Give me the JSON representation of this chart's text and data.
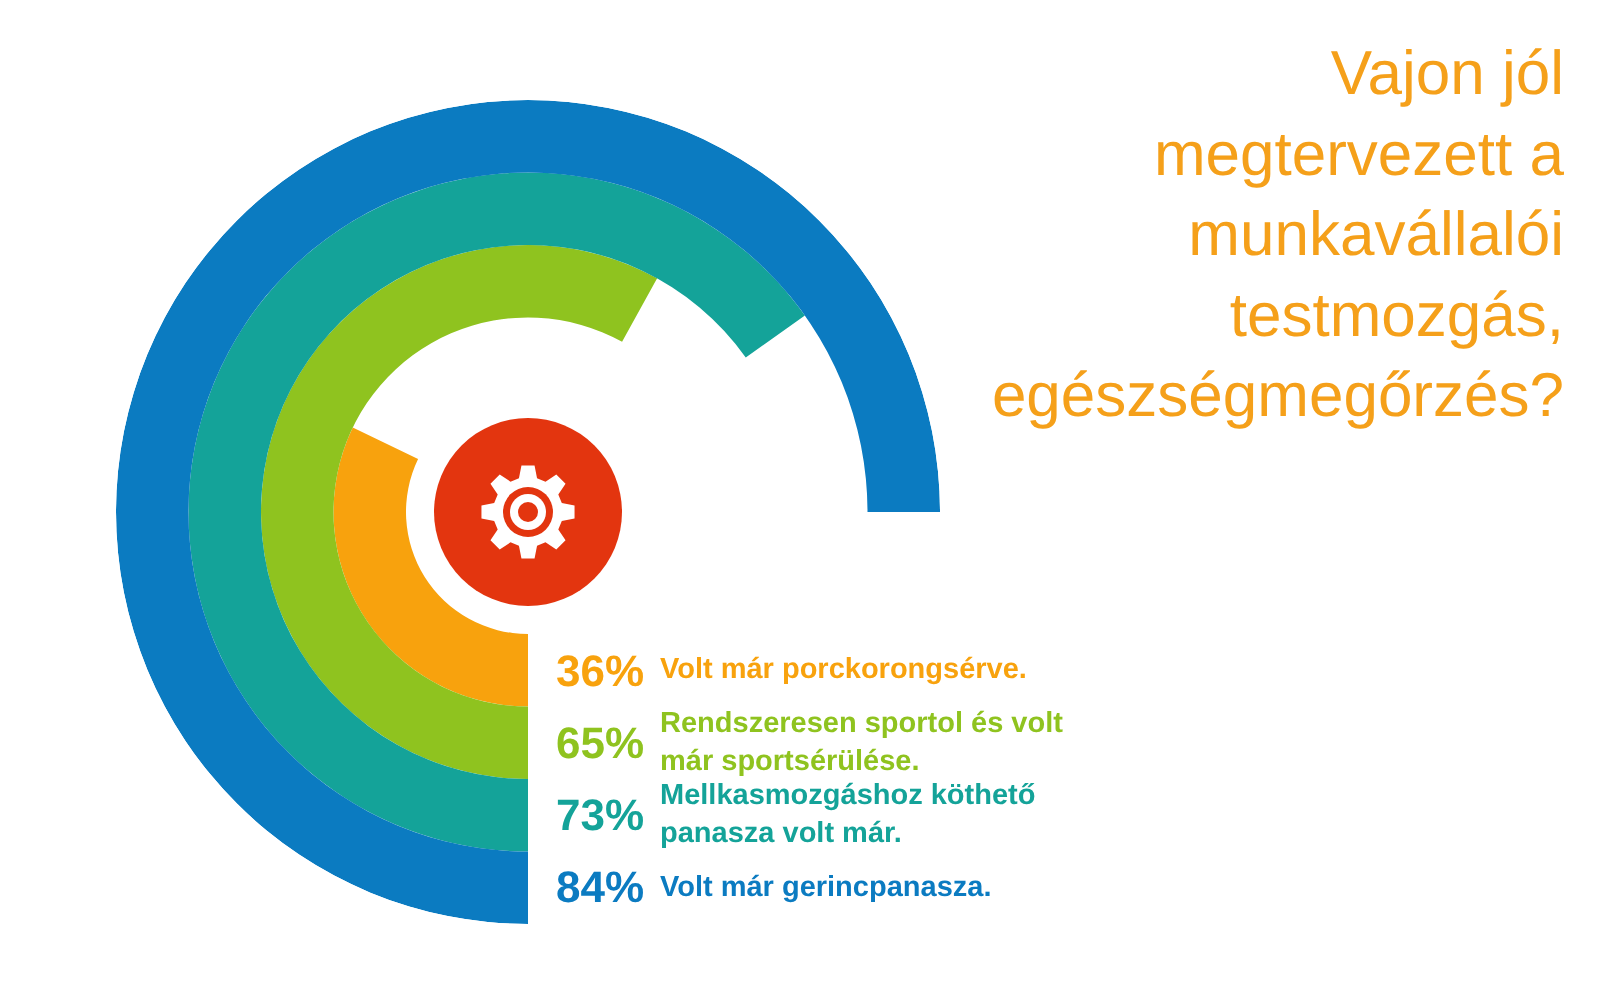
{
  "chart_data": {
    "type": "other",
    "title": "Vajon jól megtervezett a munkavállalói testmozgás, egészségmegőrzés?",
    "categories": [
      "Volt már porckorongsérve.",
      "Rendszeresen sportol és volt már sportsérülése.",
      "Mellkasmozgáshoz köthető panasza volt már.",
      "Volt már gerincpanasza."
    ],
    "values": [
      36,
      65,
      73,
      84
    ],
    "colors": [
      "#f8a20d",
      "#8fc31f",
      "#14a399",
      "#0b7bc1"
    ],
    "value_labels": [
      "36%",
      "65%",
      "73%",
      "84%"
    ]
  }
}
